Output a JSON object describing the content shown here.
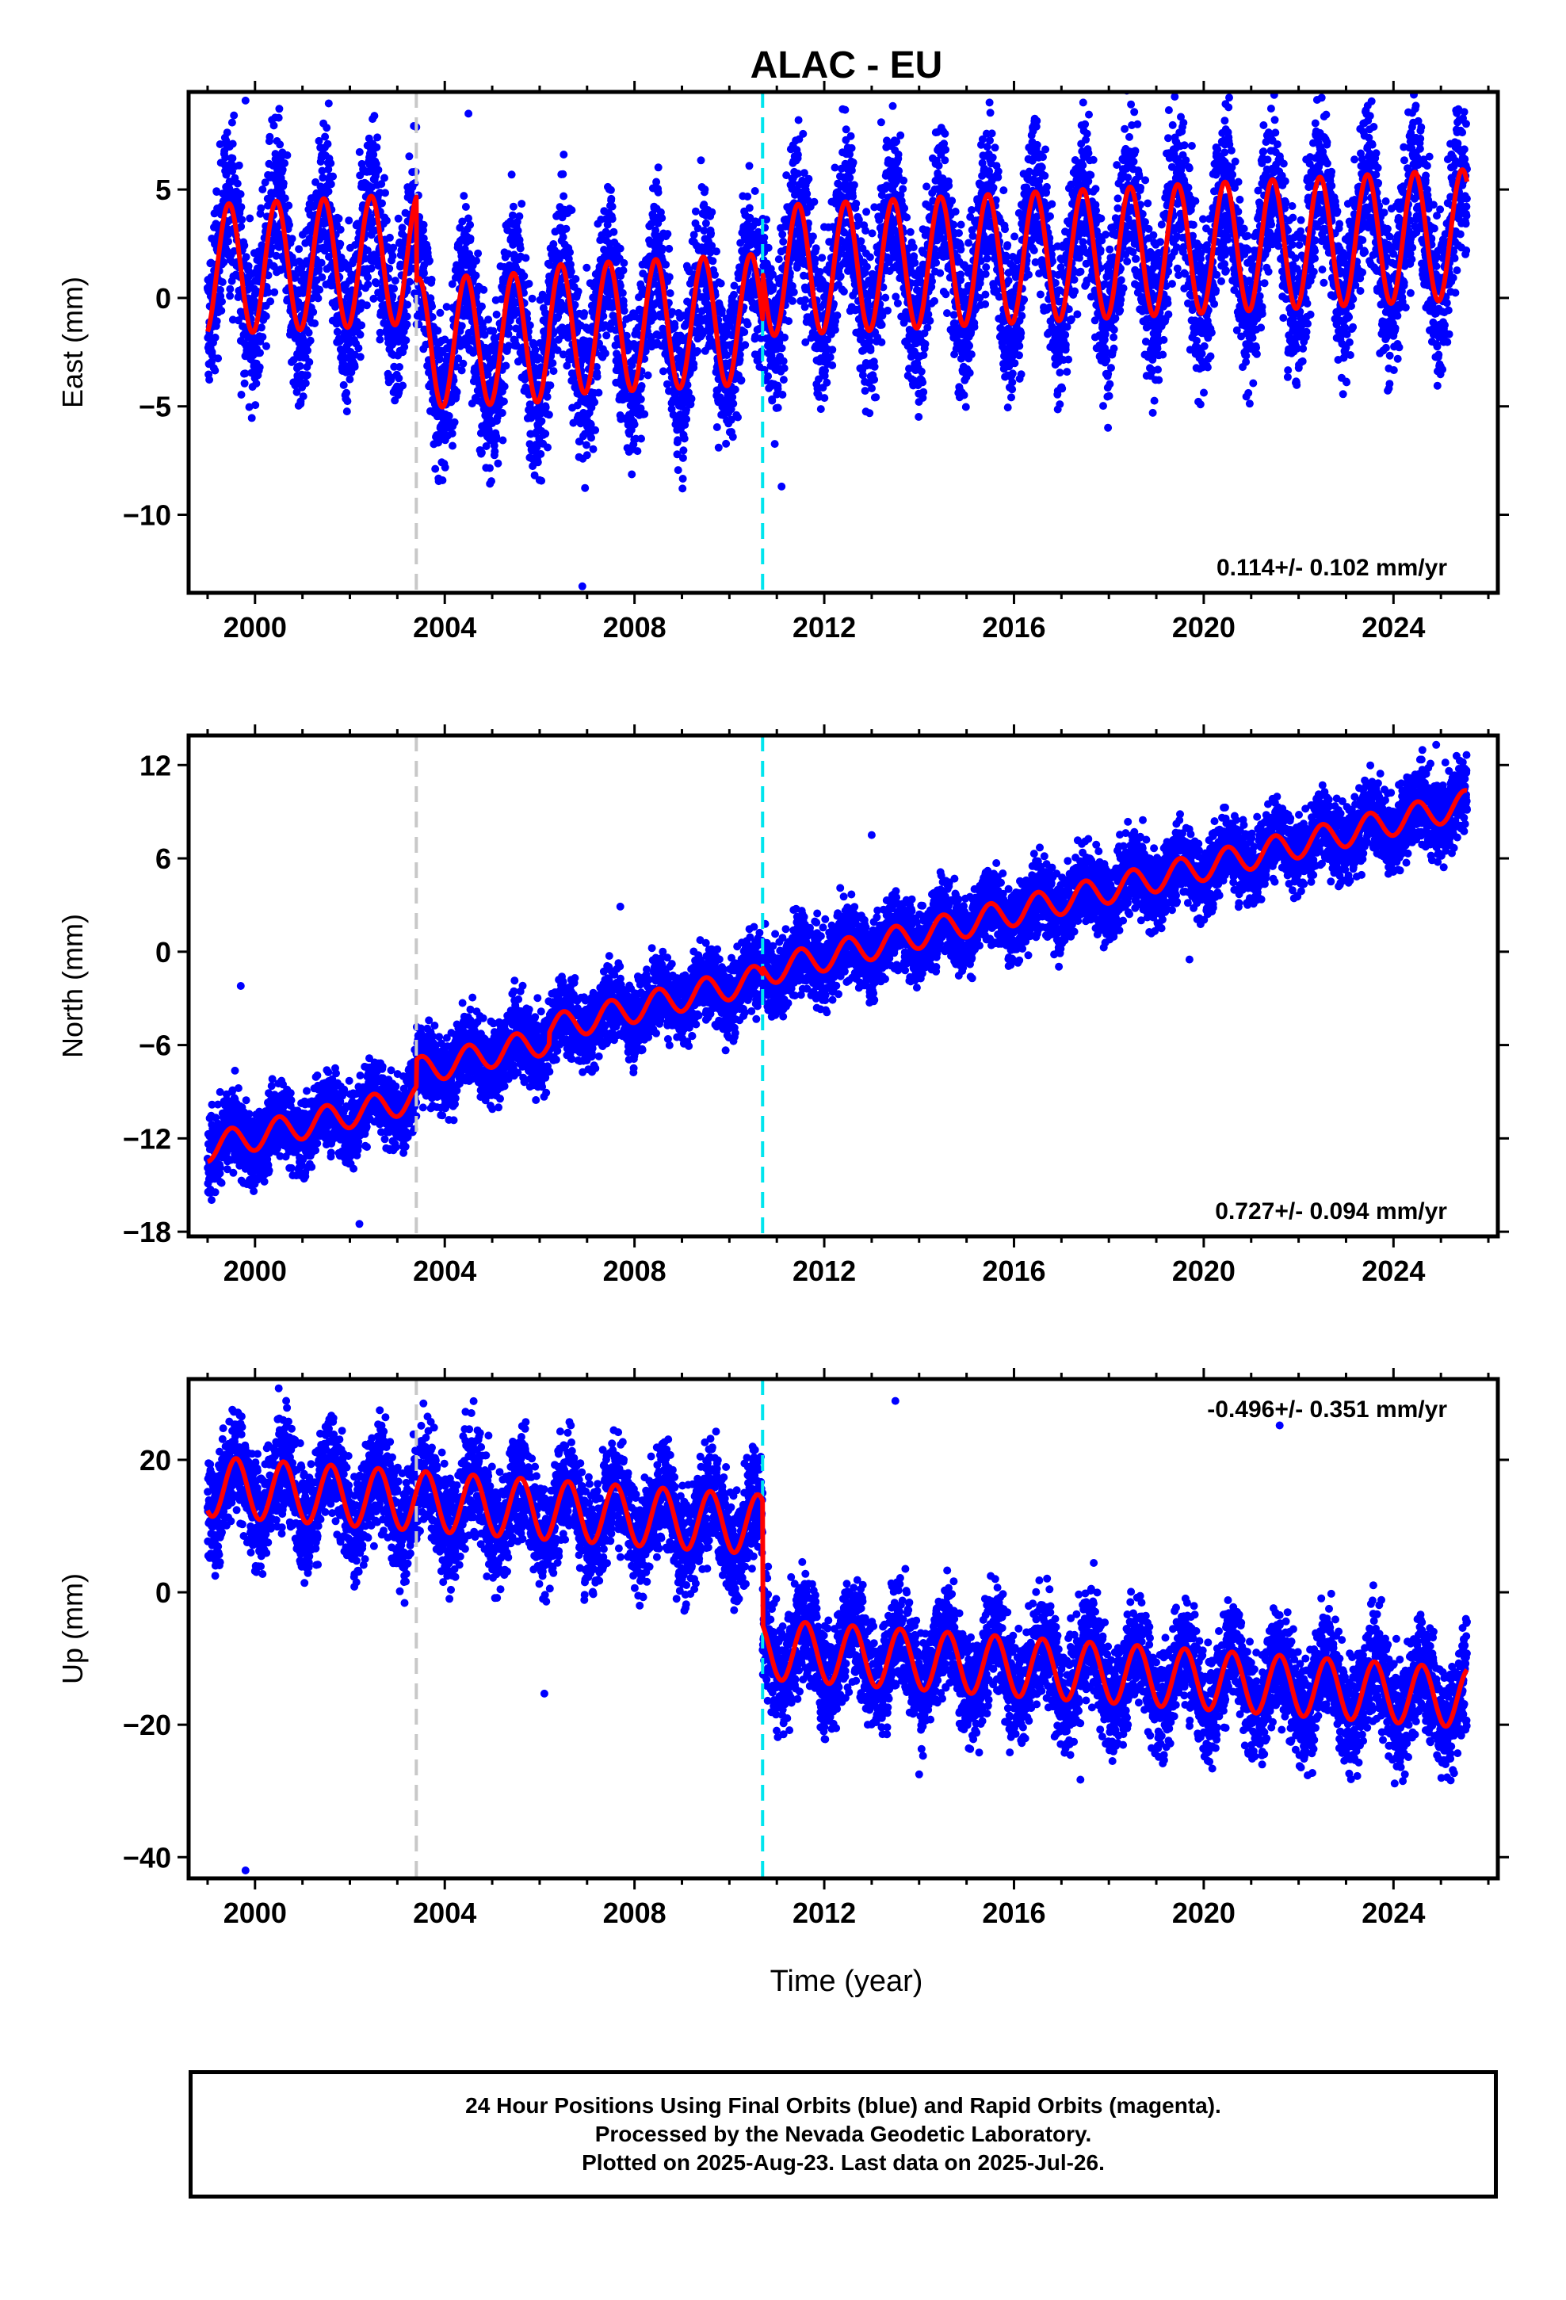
{
  "title": "ALAC - EU",
  "xlabel": "Time (year)",
  "footer": {
    "line1": "24 Hour Positions Using Final Orbits (blue) and Rapid Orbits (magenta).",
    "line2": "Processed by the Nevada Geodetic Laboratory.",
    "line3": "Plotted on 2025-Aug-23. Last data on 2025-Jul-26."
  },
  "colors": {
    "final_orbits": "#0000ff",
    "model_fit": "#ff0000",
    "equipment_change": "#c8c8c8",
    "other_offset": "#00e5ee",
    "axes": "#000000"
  },
  "chart_data": [
    {
      "type": "scatter",
      "component": "East",
      "ylabel": "East (mm)",
      "rate_label": "0.114+/- 0.102 mm/yr",
      "rate_position": "bottom-right",
      "xlim": [
        1998.6,
        2026.2
      ],
      "ylim": [
        -13.6,
        9.5
      ],
      "x_ticks": [
        2000,
        2004,
        2008,
        2012,
        2016,
        2020,
        2024
      ],
      "y_ticks": [
        5,
        0,
        -5,
        -10
      ],
      "y_tick_labels": [
        "5",
        "0",
        "−5",
        "−10"
      ],
      "offsets": [
        {
          "x": 2003.4,
          "kind": "equipment"
        },
        {
          "x": 2010.7,
          "kind": "other"
        }
      ],
      "data_start": 1999.0,
      "data_end": 2025.55,
      "model": {
        "segments": [
          {
            "from": 1999.0,
            "to": 2003.4,
            "level": 1.3
          },
          {
            "from": 2003.4,
            "to": 2006.2,
            "level": -2.6
          },
          {
            "from": 2006.2,
            "to": 2010.7,
            "level": -2.3
          },
          {
            "from": 2010.7,
            "to": 2025.55,
            "level": -0.1
          }
        ],
        "rate": 0.114,
        "annual_amplitude": 3.0,
        "peak_phase_year": 0.45
      },
      "points": {
        "sampling_days": 1,
        "scatter_sigma": 1.9,
        "outliers": [
          [
            1999.8,
            9.1
          ],
          [
            2006.9,
            -13.3
          ],
          [
            2013.2,
            8.1
          ],
          [
            2011.1,
            -8.7
          ],
          [
            2004.5,
            8.5
          ]
        ]
      }
    },
    {
      "type": "scatter",
      "component": "North",
      "ylabel": "North (mm)",
      "rate_label": "0.727+/- 0.094 mm/yr",
      "rate_position": "bottom-right",
      "xlim": [
        1998.6,
        2026.2
      ],
      "ylim": [
        -18.3,
        13.9
      ],
      "x_ticks": [
        2000,
        2004,
        2008,
        2012,
        2016,
        2020,
        2024
      ],
      "y_ticks": [
        12,
        6,
        0,
        -6,
        -12,
        -18
      ],
      "y_tick_labels": [
        "12",
        "6",
        "0",
        "−6",
        "−12",
        "−18"
      ],
      "offsets": [
        {
          "x": 2003.4,
          "kind": "equipment"
        },
        {
          "x": 2010.7,
          "kind": "other"
        }
      ],
      "data_start": 1999.0,
      "data_end": 2025.55,
      "model": {
        "segments": [
          {
            "from": 1999.0,
            "to": 2003.4,
            "level": -12.6
          },
          {
            "from": 2003.4,
            "to": 2006.2,
            "level": -10.9
          },
          {
            "from": 2006.2,
            "to": 2010.7,
            "level": -10.2
          },
          {
            "from": 2010.7,
            "to": 2025.55,
            "level": -9.8
          }
        ],
        "rate": 0.727,
        "annual_amplitude": 0.9,
        "peak_phase_year": 0.5
      },
      "points": {
        "sampling_days": 1,
        "scatter_sigma": 1.25,
        "outliers": [
          [
            1999.7,
            -2.2
          ],
          [
            2002.2,
            -17.5
          ],
          [
            2007.7,
            2.9
          ],
          [
            2013.0,
            7.5
          ],
          [
            2024.9,
            13.3
          ],
          [
            2019.7,
            -0.5
          ]
        ]
      }
    },
    {
      "type": "scatter",
      "component": "Up",
      "ylabel": "Up (mm)",
      "rate_label": "-0.496+/- 0.351 mm/yr",
      "rate_position": "top-right",
      "xlim": [
        1998.6,
        2026.2
      ],
      "ylim": [
        -43.2,
        32.2
      ],
      "x_ticks": [
        2000,
        2004,
        2008,
        2012,
        2016,
        2020,
        2024
      ],
      "y_ticks": [
        20,
        0,
        -20,
        -40
      ],
      "y_tick_labels": [
        "20",
        "0",
        "−20",
        "−40"
      ],
      "offsets": [
        {
          "x": 2003.4,
          "kind": "equipment"
        },
        {
          "x": 2010.7,
          "kind": "other"
        }
      ],
      "data_start": 1999.0,
      "data_end": 2025.55,
      "model": {
        "segments": [
          {
            "from": 1999.0,
            "to": 2010.7,
            "level": 16.0
          },
          {
            "from": 2010.7,
            "to": 2025.55,
            "level": -2.8
          }
        ],
        "rate": -0.496,
        "annual_amplitude": 4.5,
        "peak_phase_year": 0.6
      },
      "points": {
        "sampling_days": 1,
        "scatter_sigma": 4.2,
        "outliers": [
          [
            1999.8,
            -42.0
          ],
          [
            2000.5,
            30.8
          ],
          [
            2013.5,
            28.9
          ],
          [
            2021.6,
            25.2
          ],
          [
            2006.1,
            -15.3
          ],
          [
            2014.0,
            -27.5
          ],
          [
            2017.4,
            -28.3
          ]
        ]
      }
    }
  ]
}
